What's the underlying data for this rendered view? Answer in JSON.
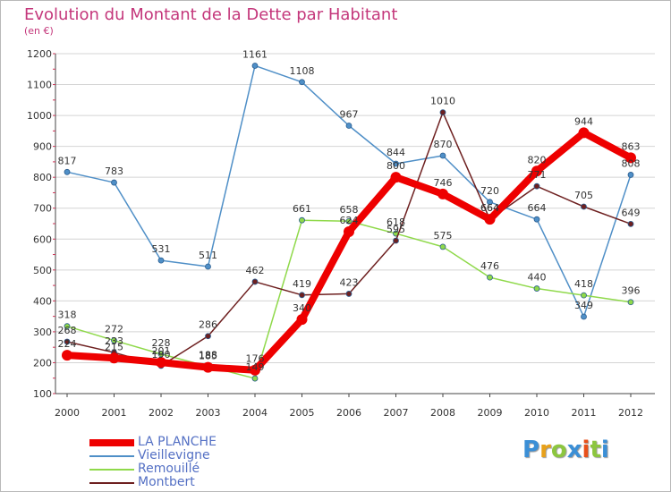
{
  "title": "Evolution du Montant de la Dette par Habitant",
  "subtitle": "(en €)",
  "chart_data": {
    "type": "line",
    "title": "Evolution du Montant de la Dette par Habitant",
    "subtitle": "(en €)",
    "xlabel": "",
    "ylabel": "",
    "x": [
      "2000",
      "2001",
      "2002",
      "2003",
      "2004",
      "2005",
      "2006",
      "2007",
      "2008",
      "2009",
      "2010",
      "2011",
      "2012"
    ],
    "ylim": [
      100,
      1200
    ],
    "yticks": [
      100,
      200,
      300,
      400,
      500,
      600,
      700,
      800,
      900,
      1000,
      1100,
      1200
    ],
    "grid": "horizontal",
    "legend_position": "bottom-left",
    "series": [
      {
        "name": "Vieillevigne",
        "color": "#4f8fc7",
        "width": 1.5,
        "values": [
          817,
          783,
          531,
          511,
          1161,
          1108,
          967,
          844,
          870,
          720,
          664,
          349,
          808
        ],
        "labels": [
          "817",
          "783",
          "531",
          "511",
          "1161",
          "1108",
          "967",
          "844",
          "870",
          "720",
          "664",
          "349",
          "808"
        ]
      },
      {
        "name": "Remouillé",
        "color": "#8fd94a",
        "width": 1.5,
        "values": [
          318,
          272,
          228,
          188,
          149,
          661,
          658,
          618,
          575,
          476,
          440,
          418,
          396
        ],
        "labels": [
          "318",
          "272",
          "228",
          "188",
          "149",
          "661",
          "658",
          "618",
          "575",
          "476",
          "440",
          "418",
          "396"
        ]
      },
      {
        "name": "Montbert",
        "color": "#6e2020",
        "width": 1.5,
        "values": [
          268,
          233,
          190,
          286,
          462,
          419,
          423,
          595,
          1010,
          664,
          771,
          705,
          649
        ],
        "labels": [
          "268",
          "233",
          "190",
          "286",
          "462",
          "419",
          "423",
          "595",
          "1010",
          "664",
          "771",
          "705",
          "649"
        ]
      },
      {
        "name": "LA PLANCHE",
        "color": "#ee0000",
        "width": 8,
        "values": [
          224,
          215,
          201,
          185,
          176,
          340,
          624,
          800,
          746,
          664,
          820,
          944,
          863
        ],
        "labels": [
          "224",
          "215",
          "201",
          "185",
          "176",
          "340",
          "624",
          "800",
          "746",
          "664",
          "820",
          "944",
          "863"
        ]
      }
    ]
  },
  "legend": [
    {
      "label": "LA PLANCHE",
      "color": "#ee0000",
      "width": 8
    },
    {
      "label": "Vieillevigne",
      "color": "#4f8fc7",
      "width": 2
    },
    {
      "label": "Remouillé",
      "color": "#8fd94a",
      "width": 2
    },
    {
      "label": "Montbert",
      "color": "#6e2020",
      "width": 2
    }
  ],
  "logo": {
    "text": "Proxiti",
    "letters": [
      "P",
      "r",
      "o",
      "x",
      "i",
      "t",
      "i"
    ],
    "colors": [
      "#3b8fd6",
      "#e8a11a",
      "#8cc63f",
      "#3b8fd6",
      "#e84f1a",
      "#8cc63f",
      "#3b8fd6"
    ]
  }
}
